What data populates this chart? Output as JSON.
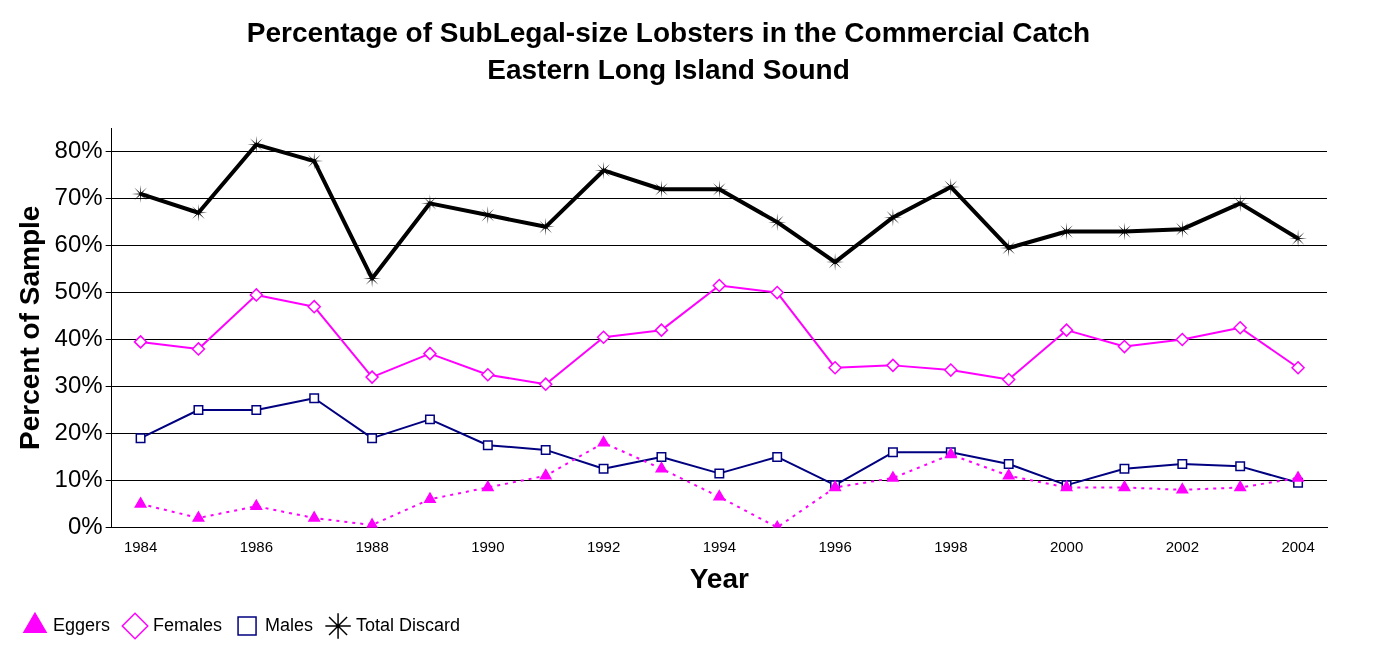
{
  "chart_data": {
    "type": "line",
    "title": "Percentage of SubLegal-size Lobsters in the Commercial Catch",
    "subtitle": "Eastern Long Island Sound",
    "xlabel": "Year",
    "ylabel": "Percent of Sample",
    "categories": [
      "1984",
      null,
      "1986",
      null,
      "1988",
      null,
      "1990",
      null,
      "1992",
      null,
      "1994",
      null,
      "1996",
      null,
      "1998",
      null,
      "2000",
      null,
      "2002",
      null,
      "2004"
    ],
    "series": [
      {
        "name": "Females",
        "color": "#ff00ff",
        "marker": "diamond",
        "line_style": "solid",
        "values": [
          39.5,
          38,
          49.5,
          47,
          32,
          37,
          32.5,
          30.5,
          40.5,
          42,
          51.5,
          50,
          34,
          34.5,
          33.5,
          31.5,
          42,
          38.5,
          40,
          42.5,
          34
        ]
      },
      {
        "name": "Males",
        "color": "#000080",
        "marker": "square",
        "line_style": "solid",
        "values": [
          19,
          25,
          25,
          27.5,
          19,
          23,
          17.5,
          16.5,
          12.5,
          15,
          11.5,
          15,
          9,
          16,
          16,
          13.5,
          9,
          12.5,
          13.5,
          13,
          9.5
        ]
      },
      {
        "name": "Eggers",
        "color": "#ff00ff",
        "marker": "triangle",
        "line_style": "dotted",
        "values": [
          5,
          2,
          4.5,
          2,
          0.5,
          6,
          8.5,
          11,
          18,
          12.5,
          6.5,
          0,
          8.5,
          10.5,
          15.5,
          11,
          8.5,
          8.5,
          8,
          8.5,
          10.5
        ]
      },
      {
        "name": "Total Discard",
        "color": "#000000",
        "marker": "star",
        "line_style": "solid",
        "values": [
          71,
          67,
          81.5,
          78,
          53,
          69,
          66.5,
          64,
          76,
          72,
          72,
          65,
          56.5,
          66,
          72.5,
          59.5,
          63,
          63,
          63.5,
          69,
          61.5
        ]
      }
    ],
    "ylim": [
      0,
      85
    ],
    "yticks": [
      {
        "value": 0,
        "label": "0%"
      },
      {
        "value": 10,
        "label": "10%"
      },
      {
        "value": 20,
        "label": "20%"
      },
      {
        "value": 30,
        "label": "30%"
      },
      {
        "value": 40,
        "label": "40%"
      },
      {
        "value": 50,
        "label": "50%"
      },
      {
        "value": 60,
        "label": "60%"
      },
      {
        "value": 70,
        "label": "70%"
      },
      {
        "value": 80,
        "label": "80%"
      }
    ],
    "grid": "y",
    "legend": "bottom left"
  }
}
